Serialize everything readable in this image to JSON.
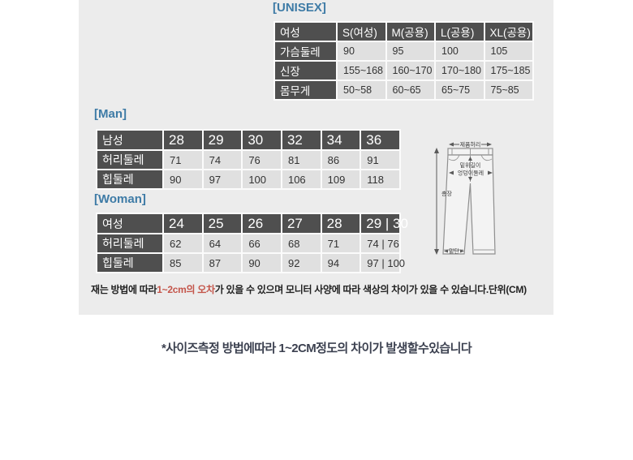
{
  "sections": {
    "unisex": {
      "title": "[UNISEX]"
    },
    "man": {
      "title": "[Man]"
    },
    "woman": {
      "title": "[Woman]"
    }
  },
  "tables": {
    "unisex": {
      "header": [
        "여성",
        "S(여성)",
        "M(공용)",
        "L(공용)",
        "XL(공용)"
      ],
      "rows": [
        {
          "label": "가슴둘레",
          "values": [
            "90",
            "95",
            "100",
            "105"
          ]
        },
        {
          "label": "신장",
          "values": [
            "155~168",
            "160~170",
            "170~180",
            "175~185"
          ]
        },
        {
          "label": "몸무게",
          "values": [
            "50~58",
            "60~65",
            "65~75",
            "75~85"
          ]
        }
      ]
    },
    "man": {
      "header": [
        "남성",
        "28",
        "29",
        "30",
        "32",
        "34",
        "36"
      ],
      "rows": [
        {
          "label": "허리둘레",
          "values": [
            "71",
            "74",
            "76",
            "81",
            "86",
            "91"
          ]
        },
        {
          "label": "힙둘레",
          "values": [
            "90",
            "97",
            "100",
            "106",
            "109",
            "118"
          ]
        }
      ]
    },
    "woman": {
      "header": [
        "여성",
        "24",
        "25",
        "26",
        "27",
        "28",
        "29 | 30"
      ],
      "rows": [
        {
          "label": "허리둘레",
          "values": [
            "62",
            "64",
            "66",
            "68",
            "71",
            "74 | 76"
          ]
        },
        {
          "label": "힙둘레",
          "values": [
            "85",
            "87",
            "90",
            "92",
            "94",
            "97 | 100"
          ]
        }
      ]
    }
  },
  "diagram": {
    "labels": {
      "product_waist": "제품허리",
      "rise_length": "밑위길이",
      "hip_circumference": "엉덩이둘레",
      "total_length": "총장",
      "hem": "밑단"
    }
  },
  "notes": {
    "measure_prefix": "재는 방법에 따라",
    "measure_highlight": "1~2cm의 오차",
    "measure_suffix": "가 있을 수 있으며 모니터 사양에 따라 색상의 차이가 있을 수 있습니다.단위(CM)",
    "footer": "*사이즈측정 방법에따라 1~2CM정도의 차이가 발생할수있습니다"
  },
  "colors": {
    "panel_background": "#ececec",
    "accent_title": "#3e7ba6",
    "header_cell": "#4f4f4f",
    "data_cell": "#e0e0e0",
    "highlight_red": "#c4554a"
  }
}
